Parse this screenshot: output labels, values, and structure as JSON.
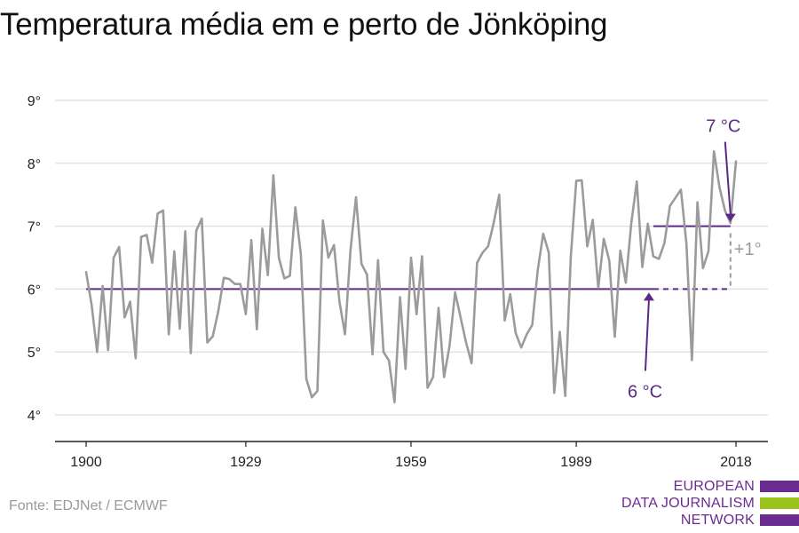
{
  "chart_data": {
    "type": "line",
    "title": "Temperatura média em e perto de Jönköping",
    "xlabel": "",
    "ylabel": "",
    "xlim": [
      1900,
      2018
    ],
    "ylim": [
      4,
      9
    ],
    "x_ticks": [
      1900,
      1929,
      1959,
      1989,
      2018
    ],
    "y_ticks": [
      4,
      5,
      6,
      7,
      8,
      9
    ],
    "y_tick_suffix": "°",
    "grid": true,
    "series": [
      {
        "color": "#9b9b9b",
        "x": [
          1900,
          1901,
          1902,
          1903,
          1904,
          1905,
          1906,
          1907,
          1908,
          1909,
          1910,
          1911,
          1912,
          1913,
          1914,
          1915,
          1916,
          1917,
          1918,
          1919,
          1920,
          1921,
          1922,
          1923,
          1924,
          1925,
          1926,
          1927,
          1928,
          1929,
          1930,
          1931,
          1932,
          1933,
          1934,
          1935,
          1936,
          1937,
          1938,
          1939,
          1940,
          1941,
          1942,
          1943,
          1944,
          1945,
          1946,
          1947,
          1948,
          1949,
          1950,
          1951,
          1952,
          1953,
          1954,
          1955,
          1956,
          1957,
          1958,
          1959,
          1960,
          1961,
          1962,
          1963,
          1964,
          1965,
          1966,
          1967,
          1968,
          1969,
          1970,
          1971,
          1972,
          1973,
          1974,
          1975,
          1976,
          1977,
          1978,
          1979,
          1980,
          1981,
          1982,
          1983,
          1984,
          1985,
          1986,
          1987,
          1988,
          1989,
          1990,
          1991,
          1992,
          1993,
          1994,
          1995,
          1996,
          1997,
          1998,
          1999,
          2000,
          2001,
          2002,
          2003,
          2004,
          2005,
          2006,
          2007,
          2008,
          2009,
          2010,
          2011,
          2012,
          2013,
          2014,
          2015,
          2016,
          2017,
          2018
        ],
        "values": [
          6.27,
          5.75,
          5.0,
          6.05,
          5.03,
          6.5,
          6.67,
          5.55,
          5.8,
          4.9,
          6.83,
          6.86,
          6.42,
          7.2,
          7.25,
          5.28,
          6.6,
          5.37,
          6.92,
          4.98,
          6.93,
          7.12,
          5.15,
          5.25,
          5.65,
          6.18,
          6.16,
          6.08,
          6.08,
          5.6,
          6.78,
          5.36,
          6.96,
          6.22,
          7.81,
          6.5,
          6.17,
          6.21,
          7.3,
          6.55,
          4.57,
          4.28,
          4.38,
          7.09,
          6.5,
          6.7,
          5.8,
          5.28,
          6.62,
          7.46,
          6.4,
          6.23,
          4.96,
          6.46,
          5.0,
          4.86,
          4.2,
          5.87,
          4.73,
          6.5,
          5.6,
          6.52,
          4.43,
          4.6,
          5.7,
          4.6,
          5.1,
          5.95,
          5.55,
          5.15,
          4.82,
          6.42,
          6.58,
          6.68,
          7.05,
          7.5,
          5.5,
          5.92,
          5.3,
          5.07,
          5.28,
          5.43,
          6.3,
          6.88,
          6.58,
          4.35,
          5.32,
          4.3,
          6.5,
          7.72,
          7.73,
          6.68,
          7.1,
          6.02,
          6.8,
          6.45,
          5.24,
          6.61,
          6.1,
          7.05,
          7.71,
          6.35,
          7.04,
          6.52,
          6.48,
          6.73,
          7.32,
          7.45,
          7.58,
          6.72,
          4.87,
          7.38,
          6.33,
          6.6,
          8.19,
          7.62,
          7.25,
          7.05,
          8.03
        ]
      }
    ],
    "reference_lines": [
      {
        "value": 6,
        "color": "#5b2a86",
        "x_start": 1900,
        "x_end": 2003
      },
      {
        "value": 7,
        "color": "#5b2a86",
        "x_start": 2003,
        "x_end": 2017
      }
    ],
    "annotations": [
      {
        "id": "baseline",
        "text": "6 °C",
        "color": "#5b2a86",
        "target_x": 2003,
        "target_y": 6
      },
      {
        "id": "recent",
        "text": "7 °C",
        "color": "#5b2a86",
        "target_x": 2017,
        "target_y": 7
      },
      {
        "id": "diff",
        "text": "+1°",
        "color": "#9b9b9b"
      }
    ]
  },
  "footer": {
    "source": "Fonte: EDJNet / ECMWF"
  },
  "logo": {
    "line1": "EUROPEAN",
    "line2": "DATA JOURNALISM",
    "line3": "NETWORK",
    "colors": {
      "purple": "#6b2c91",
      "green": "#9ac31c"
    }
  }
}
